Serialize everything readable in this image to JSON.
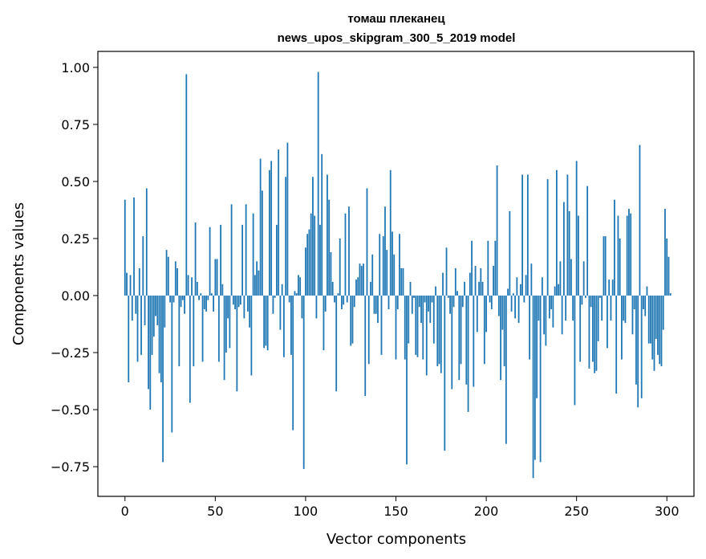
{
  "chart_data": {
    "type": "bar",
    "title": "томаш плеканец",
    "subtitle": "news_upos_skipgram_300_5_2019 model",
    "xlabel": "Vector components",
    "ylabel": "Components values",
    "xlim": [
      -15,
      315
    ],
    "ylim": [
      -0.88,
      1.07
    ],
    "x_ticks": [
      0,
      50,
      100,
      150,
      200,
      250,
      300
    ],
    "x_tick_labels": [
      "0",
      "50",
      "100",
      "150",
      "200",
      "250",
      "300"
    ],
    "y_ticks": [
      -0.75,
      -0.5,
      -0.25,
      0.0,
      0.25,
      0.5,
      0.75,
      1.0
    ],
    "y_tick_labels": [
      "−0.75",
      "−0.50",
      "−0.25",
      "0.00",
      "0.25",
      "0.50",
      "0.75",
      "1.00"
    ],
    "grid": false,
    "bar_color": "#1f77b4",
    "values": [
      0.42,
      0.1,
      -0.38,
      0.09,
      -0.11,
      0.43,
      -0.08,
      -0.29,
      0.12,
      -0.26,
      0.26,
      -0.13,
      0.47,
      -0.41,
      -0.5,
      -0.26,
      -0.18,
      -0.09,
      -0.13,
      -0.34,
      -0.38,
      -0.73,
      -0.14,
      0.2,
      0.17,
      -0.03,
      -0.6,
      -0.03,
      0.15,
      0.12,
      -0.31,
      -0.05,
      -0.02,
      -0.08,
      0.97,
      0.09,
      -0.47,
      0.08,
      -0.31,
      0.32,
      0.06,
      -0.02,
      0.01,
      -0.29,
      -0.06,
      -0.07,
      -0.02,
      0.3,
      0.01,
      -0.07,
      0.16,
      0.16,
      -0.29,
      0.31,
      0.05,
      -0.37,
      -0.25,
      -0.1,
      -0.23,
      0.4,
      -0.04,
      -0.06,
      -0.42,
      -0.05,
      -0.04,
      0.31,
      -0.1,
      0.4,
      -0.07,
      -0.14,
      -0.35,
      0.36,
      0.09,
      0.15,
      0.11,
      0.6,
      0.46,
      -0.23,
      -0.22,
      -0.24,
      0.55,
      0.59,
      -0.08,
      -0.01,
      0.31,
      0.64,
      -0.15,
      0.05,
      -0.27,
      0.52,
      0.67,
      -0.03,
      -0.26,
      -0.59,
      0.02,
      0.01,
      0.09,
      0.08,
      -0.1,
      -0.76,
      0.21,
      0.27,
      0.29,
      0.36,
      0.52,
      0.35,
      -0.1,
      0.98,
      0.31,
      0.62,
      -0.24,
      -0.07,
      0.53,
      0.42,
      0.19,
      0.06,
      -0.03,
      -0.42,
      0.01,
      0.25,
      -0.06,
      -0.04,
      0.36,
      -0.03,
      0.39,
      -0.22,
      -0.21,
      -0.05,
      0.07,
      0.08,
      0.14,
      0.13,
      0.14,
      -0.44,
      0.47,
      -0.3,
      0.06,
      0.18,
      -0.08,
      -0.08,
      -0.12,
      0.27,
      -0.26,
      0.26,
      0.39,
      0.2,
      -0.06,
      0.55,
      0.28,
      0.18,
      -0.28,
      -0.06,
      0.27,
      0.12,
      0.12,
      -0.28,
      -0.74,
      -0.21,
      0.06,
      -0.08,
      -0.01,
      -0.26,
      -0.27,
      -0.05,
      -0.12,
      -0.28,
      -0.03,
      -0.35,
      -0.07,
      -0.12,
      -0.03,
      -0.21,
      0.04,
      -0.31,
      -0.3,
      -0.34,
      0.1,
      -0.68,
      0.21,
      -0.01,
      -0.08,
      -0.41,
      -0.05,
      0.12,
      0.02,
      -0.37,
      -0.3,
      -0.05,
      0.06,
      -0.39,
      -0.51,
      0.1,
      0.24,
      -0.4,
      0.13,
      -0.16,
      0.06,
      0.12,
      0.06,
      -0.3,
      -0.16,
      0.24,
      -0.03,
      -0.06,
      0.13,
      0.24,
      0.57,
      -0.09,
      -0.37,
      -0.15,
      -0.31,
      -0.65,
      0.03,
      0.37,
      -0.07,
      0.01,
      -0.1,
      0.08,
      -0.12,
      0.05,
      0.53,
      -0.03,
      0.09,
      0.53,
      -0.28,
      0.14,
      -0.8,
      -0.72,
      -0.45,
      -0.11,
      -0.73,
      0.08,
      -0.17,
      -0.22,
      0.51,
      -0.1,
      -0.06,
      -0.14,
      0.04,
      0.55,
      0.05,
      0.15,
      -0.17,
      0.41,
      -0.11,
      0.53,
      0.37,
      0.16,
      -0.11,
      -0.48,
      0.59,
      0.35,
      -0.29,
      -0.04,
      0.15,
      -0.01,
      0.48,
      -0.32,
      -0.05,
      -0.29,
      -0.34,
      -0.33,
      -0.2,
      -0.01,
      -0.11,
      0.26,
      0.26,
      -0.23,
      0.07,
      -0.11,
      0.07,
      0.42,
      -0.43,
      0.35,
      0.25,
      -0.28,
      -0.11,
      -0.12,
      0.35,
      0.38,
      0.36,
      -0.17,
      -0.06,
      -0.39,
      -0.49,
      0.66,
      -0.45,
      -0.06,
      -0.09,
      0.04,
      -0.21,
      -0.21,
      -0.28,
      -0.33,
      -0.19,
      -0.26,
      -0.3,
      -0.31,
      -0.15,
      0.38,
      0.25,
      0.17,
      0.01
    ]
  }
}
